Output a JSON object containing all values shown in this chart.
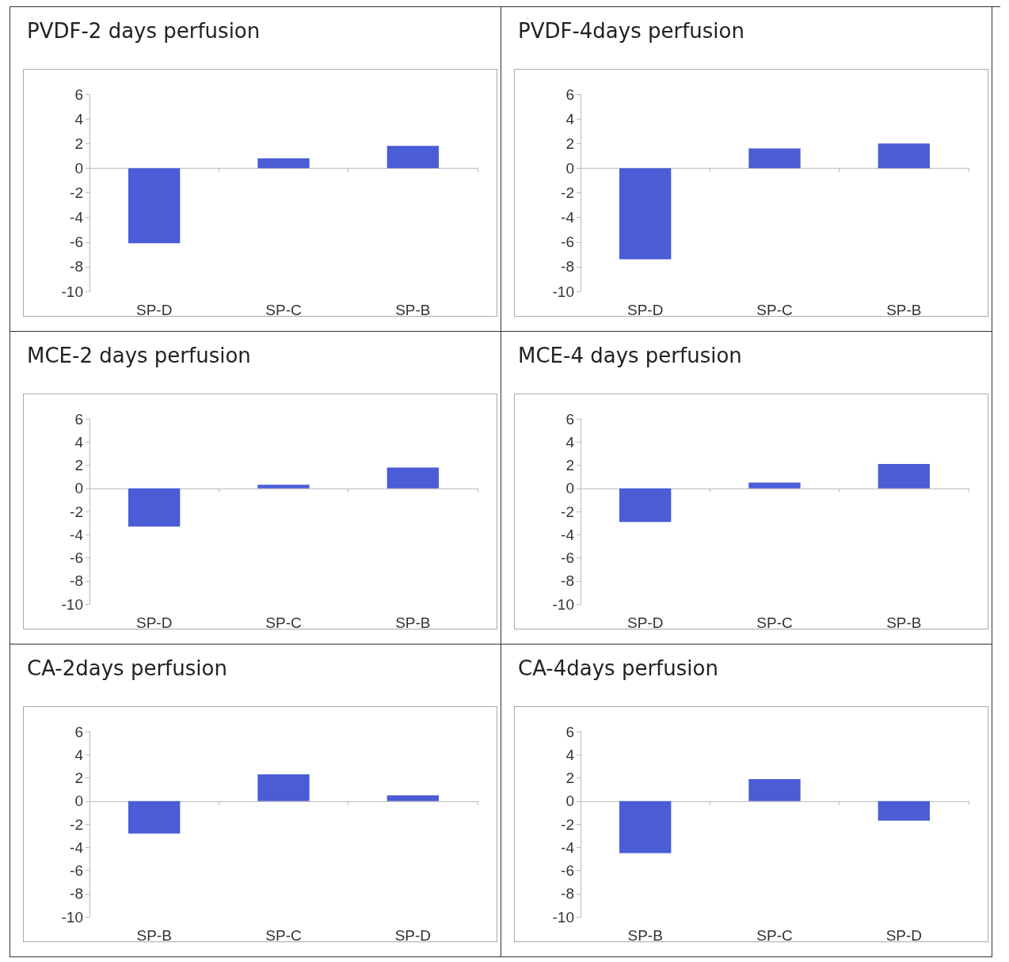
{
  "chart_data": [
    {
      "type": "bar",
      "title": "PVDF-2 days perfusion",
      "categories": [
        "SP-D",
        "SP-C",
        "SP-B"
      ],
      "values": [
        -6.1,
        0.8,
        1.8
      ],
      "color": "#4a5cd6",
      "ylim": [
        -10,
        6
      ],
      "yticks": [
        -10,
        -8,
        -6,
        -4,
        -2,
        0,
        2,
        4,
        6
      ]
    },
    {
      "type": "bar",
      "title": "PVDF-4days perfusion",
      "categories": [
        "SP-D",
        "SP-C",
        "SP-B"
      ],
      "values": [
        -7.4,
        1.6,
        2.0
      ],
      "color": "#4a5cd6",
      "ylim": [
        -10,
        6
      ],
      "yticks": [
        -10,
        -8,
        -6,
        -4,
        -2,
        0,
        2,
        4,
        6
      ]
    },
    {
      "type": "bar",
      "title": "MCE-2 days perfusion",
      "categories": [
        "SP-D",
        "SP-C",
        "SP-B"
      ],
      "values": [
        -3.3,
        0.3,
        1.8
      ],
      "color": "#4a5cd6",
      "ylim": [
        -10,
        6
      ],
      "yticks": [
        -10,
        -8,
        -6,
        -4,
        -2,
        0,
        2,
        4,
        6
      ]
    },
    {
      "type": "bar",
      "title": "MCE-4 days perfusion",
      "categories": [
        "SP-D",
        "SP-C",
        "SP-B"
      ],
      "values": [
        -2.9,
        0.5,
        2.1
      ],
      "color": "#4a5cd6",
      "ylim": [
        -10,
        6
      ],
      "yticks": [
        -10,
        -8,
        -6,
        -4,
        -2,
        0,
        2,
        4,
        6
      ]
    },
    {
      "type": "bar",
      "title": "CA-2days perfusion",
      "categories": [
        "SP-B",
        "SP-C",
        "SP-D"
      ],
      "values": [
        -2.8,
        2.3,
        0.5
      ],
      "color": "#4a5cd6",
      "ylim": [
        -10,
        6
      ],
      "yticks": [
        -10,
        -8,
        -6,
        -4,
        -2,
        0,
        2,
        4,
        6
      ]
    },
    {
      "type": "bar",
      "title": "CA-4days perfusion",
      "categories": [
        "SP-B",
        "SP-C",
        "SP-D"
      ],
      "values": [
        -4.5,
        1.9,
        -1.7
      ],
      "color": "#4a5cd6",
      "ylim": [
        -10,
        6
      ],
      "yticks": [
        -10,
        -8,
        -6,
        -4,
        -2,
        0,
        2,
        4,
        6
      ]
    }
  ]
}
